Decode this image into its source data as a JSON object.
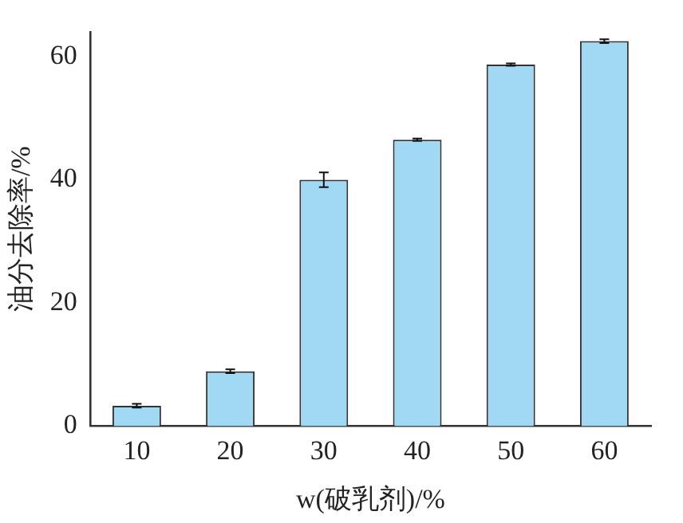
{
  "chart_data": {
    "type": "bar",
    "xlabel": "w(破乳剂)/%",
    "ylabel": "油分去除率/%",
    "categories": [
      "10",
      "20",
      "30",
      "40",
      "50",
      "60"
    ],
    "values": [
      3.3,
      8.9,
      40.0,
      46.5,
      58.7,
      62.5
    ],
    "errors": [
      0.3,
      0.3,
      1.2,
      0.2,
      0.2,
      0.3
    ],
    "color": "#a1d8f3",
    "ylim": [
      0,
      64
    ],
    "yticks": [
      0,
      20,
      40,
      60
    ],
    "grid": false,
    "legend": false
  }
}
